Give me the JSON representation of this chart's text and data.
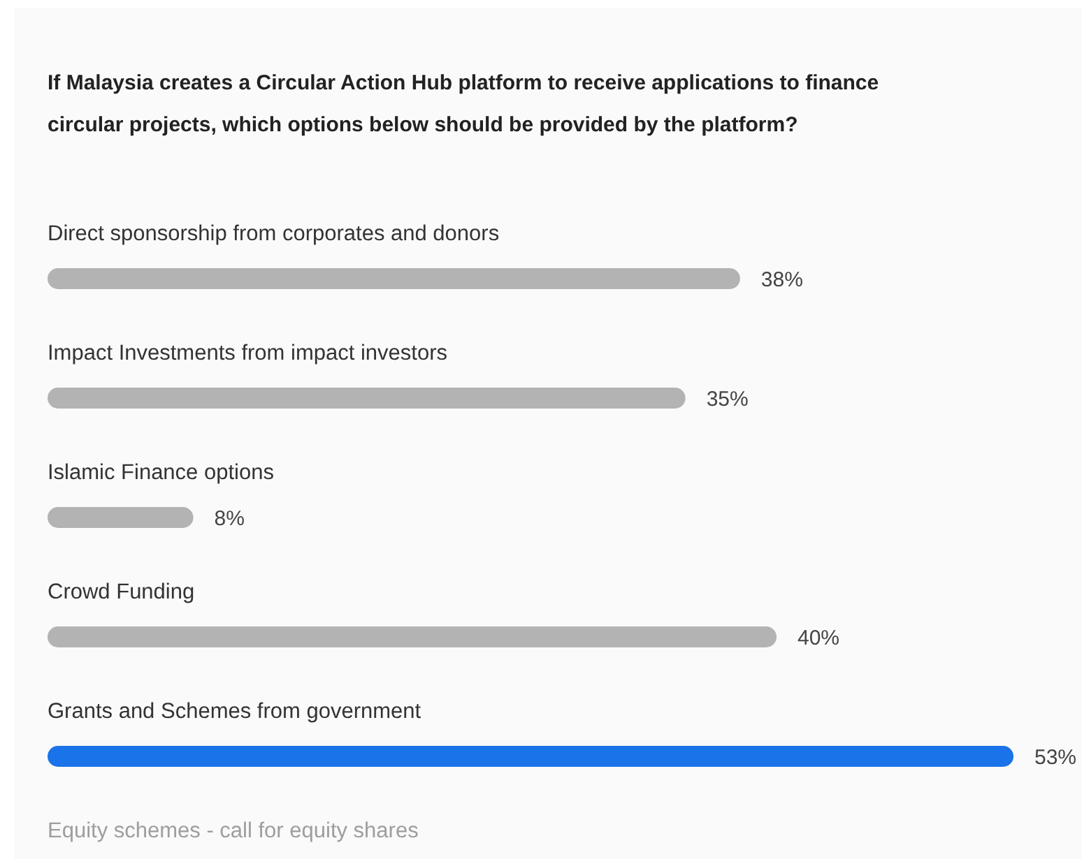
{
  "chart_data": {
    "type": "bar",
    "orientation": "horizontal",
    "title": "If Malaysia creates a Circular Action Hub platform to receive applications to finance circular projects, which options below should be provided by the platform?",
    "categories": [
      "Direct sponsorship from corporates and donors",
      "Impact Investments from impact investors",
      "Islamic Finance options",
      "Crowd Funding",
      "Grants and Schemes from government",
      "Equity schemes - call for equity shares"
    ],
    "values": [
      38,
      35,
      8,
      40,
      53,
      null
    ],
    "value_labels": [
      "38%",
      "35%",
      "8%",
      "40%",
      "53%",
      null
    ],
    "colors": [
      "#b3b3b3",
      "#b3b3b3",
      "#b3b3b3",
      "#b3b3b3",
      "#1a73e8",
      null
    ]
  }
}
